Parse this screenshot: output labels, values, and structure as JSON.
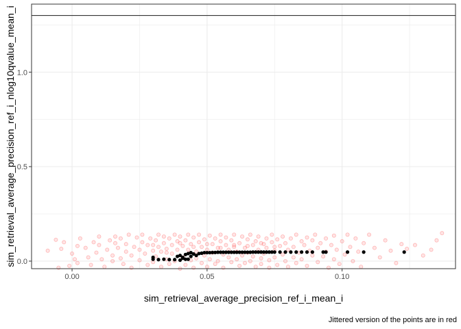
{
  "chart_data": {
    "type": "scatter",
    "xlabel": "sim_retrieval_average_precision_ref_i_mean_i",
    "ylabel": "sim_retrieval_average_precision_ref_i_nlog10qvalue_mean_i",
    "caption": "Jittered version of the points are in red",
    "xlim": [
      -0.015,
      0.142
    ],
    "ylim": [
      -0.04,
      1.36
    ],
    "x_ticks": [
      0.0,
      0.05,
      0.1
    ],
    "x_tick_labels": [
      "0.00",
      "0.05",
      "0.10"
    ],
    "y_ticks": [
      0.0,
      0.5,
      1.0
    ],
    "y_tick_labels": [
      "0.0",
      "0.5",
      "1.0"
    ],
    "hline": 1.3,
    "grid": true,
    "colors": {
      "points": "#000000",
      "jittered": "#ff0000",
      "grid": "#ebebeb",
      "hline": "#333333"
    },
    "series": [
      {
        "color": "#000000",
        "points": [
          [
            0.03,
            0.01
          ],
          [
            0.03,
            0.02
          ],
          [
            0.032,
            0.008
          ],
          [
            0.034,
            0.01
          ],
          [
            0.036,
            0.008
          ],
          [
            0.038,
            0.008
          ],
          [
            0.039,
            0.025
          ],
          [
            0.04,
            0.03
          ],
          [
            0.041,
            0.015
          ],
          [
            0.042,
            0.035
          ],
          [
            0.042,
            0.01
          ],
          [
            0.043,
            0.04
          ],
          [
            0.044,
            0.025
          ],
          [
            0.045,
            0.038
          ],
          [
            0.046,
            0.03
          ],
          [
            0.047,
            0.04
          ],
          [
            0.048,
            0.042
          ],
          [
            0.049,
            0.045
          ],
          [
            0.05,
            0.045
          ],
          [
            0.051,
            0.045
          ],
          [
            0.052,
            0.046
          ],
          [
            0.053,
            0.046
          ],
          [
            0.054,
            0.047
          ],
          [
            0.055,
            0.047
          ],
          [
            0.056,
            0.047
          ],
          [
            0.057,
            0.047
          ],
          [
            0.058,
            0.047
          ],
          [
            0.059,
            0.047
          ],
          [
            0.06,
            0.047
          ],
          [
            0.061,
            0.047
          ],
          [
            0.062,
            0.047
          ],
          [
            0.063,
            0.047
          ],
          [
            0.064,
            0.047
          ],
          [
            0.065,
            0.047
          ],
          [
            0.066,
            0.047
          ],
          [
            0.067,
            0.048
          ],
          [
            0.068,
            0.048
          ],
          [
            0.069,
            0.048
          ],
          [
            0.07,
            0.048
          ],
          [
            0.071,
            0.048
          ],
          [
            0.072,
            0.048
          ],
          [
            0.073,
            0.048
          ],
          [
            0.074,
            0.048
          ],
          [
            0.075,
            0.048
          ],
          [
            0.077,
            0.048
          ],
          [
            0.079,
            0.048
          ],
          [
            0.081,
            0.048
          ],
          [
            0.083,
            0.048
          ],
          [
            0.085,
            0.048
          ],
          [
            0.087,
            0.048
          ],
          [
            0.089,
            0.048
          ],
          [
            0.093,
            0.048
          ],
          [
            0.094,
            0.048
          ],
          [
            0.102,
            0.048
          ],
          [
            0.108,
            0.048
          ],
          [
            0.123,
            0.048
          ],
          [
            0.04,
            0.005
          ],
          [
            0.041,
            0.02
          ],
          [
            0.043,
            0.01
          ],
          [
            0.044,
            0.045
          ]
        ]
      },
      {
        "color": "#ff0000",
        "points": [
          [
            -0.009,
            0.055
          ],
          [
            -0.006,
            0.113
          ],
          [
            -0.005,
            -0.035
          ],
          [
            -0.004,
            0.065
          ],
          [
            -0.003,
            0.1
          ],
          [
            -0.001,
            -0.025
          ],
          [
            0.0,
            0.04
          ],
          [
            0.002,
            0.08
          ],
          [
            0.003,
            0.12
          ],
          [
            0.002,
            -0.01
          ],
          [
            0.001,
            0.01
          ],
          [
            0.005,
            0.07
          ],
          [
            0.006,
            0.02
          ],
          [
            0.007,
            -0.02
          ],
          [
            0.008,
            0.1
          ],
          [
            0.009,
            0.045
          ],
          [
            0.01,
            0.085
          ],
          [
            0.01,
            0.13
          ],
          [
            0.011,
            0.01
          ],
          [
            0.012,
            -0.03
          ],
          [
            0.013,
            0.06
          ],
          [
            0.014,
            0.11
          ],
          [
            0.015,
            0.03
          ],
          [
            0.015,
            0.0
          ],
          [
            0.016,
            0.095
          ],
          [
            0.016,
            0.13
          ],
          [
            0.017,
            0.07
          ],
          [
            0.018,
            0.015
          ],
          [
            0.018,
            0.12
          ],
          [
            0.019,
            -0.015
          ],
          [
            0.02,
            0.05
          ],
          [
            0.02,
            0.09
          ],
          [
            0.021,
            0.14
          ],
          [
            0.022,
            0.03
          ],
          [
            0.022,
            -0.035
          ],
          [
            0.023,
            0.075
          ],
          [
            0.024,
            0.125
          ],
          [
            0.025,
            0.005
          ],
          [
            0.025,
            0.06
          ],
          [
            0.026,
            0.1
          ],
          [
            0.026,
            0.14
          ],
          [
            0.027,
            0.04
          ],
          [
            0.028,
            -0.02
          ],
          [
            0.028,
            0.085
          ],
          [
            0.029,
            0.12
          ],
          [
            0.03,
            0.055
          ],
          [
            0.03,
            -0.005
          ],
          [
            0.031,
            0.11
          ],
          [
            0.031,
            0.025
          ],
          [
            0.032,
            0.14
          ],
          [
            0.032,
            0.075
          ],
          [
            0.033,
            -0.03
          ],
          [
            0.033,
            0.05
          ],
          [
            0.034,
            0.095
          ],
          [
            0.034,
            0.13
          ],
          [
            0.035,
            0.01
          ],
          [
            0.035,
            0.065
          ],
          [
            0.036,
            0.12
          ],
          [
            0.036,
            -0.015
          ],
          [
            0.037,
            0.085
          ],
          [
            0.037,
            0.04
          ],
          [
            0.038,
            0.14
          ],
          [
            0.038,
            0.0
          ],
          [
            0.039,
            0.105
          ],
          [
            0.039,
            0.06
          ],
          [
            0.04,
            -0.04
          ],
          [
            0.04,
            0.13
          ],
          [
            0.041,
            0.08
          ],
          [
            0.041,
            0.02
          ],
          [
            0.042,
            0.11
          ],
          [
            0.042,
            -0.02
          ],
          [
            0.043,
            0.06
          ],
          [
            0.043,
            0.14
          ],
          [
            0.044,
            0.005
          ],
          [
            0.044,
            0.09
          ],
          [
            0.045,
            -0.035
          ],
          [
            0.045,
            0.125
          ],
          [
            0.046,
            0.05
          ],
          [
            0.046,
            0.015
          ],
          [
            0.047,
            0.1
          ],
          [
            0.047,
            0.14
          ],
          [
            0.048,
            -0.01
          ],
          [
            0.048,
            0.075
          ],
          [
            0.049,
            0.03
          ],
          [
            0.049,
            0.115
          ],
          [
            0.05,
            0.06
          ],
          [
            0.05,
            -0.03
          ],
          [
            0.051,
            0.135
          ],
          [
            0.051,
            0.01
          ],
          [
            0.052,
            0.09
          ],
          [
            0.052,
            0.045
          ],
          [
            0.053,
            0.12
          ],
          [
            0.053,
            -0.015
          ],
          [
            0.054,
            0.07
          ],
          [
            0.054,
            0.0
          ],
          [
            0.055,
            0.105
          ],
          [
            0.055,
            0.14
          ],
          [
            0.056,
            0.035
          ],
          [
            0.056,
            -0.035
          ],
          [
            0.057,
            0.085
          ],
          [
            0.057,
            0.125
          ],
          [
            0.058,
            0.02
          ],
          [
            0.058,
            0.06
          ],
          [
            0.059,
            -0.005
          ],
          [
            0.059,
            0.11
          ],
          [
            0.06,
            0.075
          ],
          [
            0.06,
            0.14
          ],
          [
            0.061,
            0.01
          ],
          [
            0.061,
            0.05
          ],
          [
            0.062,
            -0.025
          ],
          [
            0.062,
            0.095
          ],
          [
            0.063,
            0.13
          ],
          [
            0.063,
            0.03
          ],
          [
            0.064,
            0.07
          ],
          [
            0.064,
            -0.01
          ],
          [
            0.065,
            0.115
          ],
          [
            0.065,
            0.045
          ],
          [
            0.066,
            0.0
          ],
          [
            0.066,
            0.14
          ],
          [
            0.067,
            0.085
          ],
          [
            0.067,
            0.025
          ],
          [
            0.068,
            -0.03
          ],
          [
            0.068,
            0.105
          ],
          [
            0.069,
            0.06
          ],
          [
            0.069,
            0.13
          ],
          [
            0.07,
            0.015
          ],
          [
            0.07,
            -0.015
          ],
          [
            0.071,
            0.09
          ],
          [
            0.071,
            0.04
          ],
          [
            0.072,
            0.12
          ],
          [
            0.072,
            0.07
          ],
          [
            0.073,
            0.005
          ],
          [
            0.073,
            -0.035
          ],
          [
            0.074,
            0.1
          ],
          [
            0.074,
            0.14
          ],
          [
            0.075,
            0.055
          ],
          [
            0.075,
            0.02
          ],
          [
            0.076,
            0.115
          ],
          [
            0.076,
            -0.02
          ],
          [
            0.077,
            0.08
          ],
          [
            0.078,
            0.13
          ],
          [
            0.078,
            0.035
          ],
          [
            0.079,
            0.0
          ],
          [
            0.079,
            0.095
          ],
          [
            0.08,
            0.06
          ],
          [
            0.08,
            -0.03
          ],
          [
            0.081,
            0.12
          ],
          [
            0.082,
            0.02
          ],
          [
            0.082,
            0.075
          ],
          [
            0.083,
            0.14
          ],
          [
            0.083,
            -0.01
          ],
          [
            0.084,
            0.045
          ],
          [
            0.085,
            0.105
          ],
          [
            0.085,
            0.01
          ],
          [
            0.086,
            0.085
          ],
          [
            0.087,
            0.125
          ],
          [
            0.087,
            -0.025
          ],
          [
            0.088,
            0.055
          ],
          [
            0.089,
            0.03
          ],
          [
            0.089,
            0.11
          ],
          [
            0.09,
            0.14
          ],
          [
            0.091,
            0.07
          ],
          [
            0.091,
            -0.005
          ],
          [
            0.092,
            0.095
          ],
          [
            0.093,
            0.025
          ],
          [
            0.094,
            0.12
          ],
          [
            0.094,
            0.05
          ],
          [
            0.095,
            -0.035
          ],
          [
            0.096,
            0.085
          ],
          [
            0.097,
            0.01
          ],
          [
            0.097,
            0.135
          ],
          [
            0.098,
            0.06
          ],
          [
            0.099,
            -0.015
          ],
          [
            0.1,
            0.105
          ],
          [
            0.101,
            0.035
          ],
          [
            0.102,
            0.14
          ],
          [
            0.103,
            0.075
          ],
          [
            0.104,
            0.0
          ],
          [
            0.105,
            0.12
          ],
          [
            0.106,
            0.05
          ],
          [
            0.107,
            -0.03
          ],
          [
            0.108,
            0.095
          ],
          [
            0.11,
            0.14
          ],
          [
            0.112,
            0.07
          ],
          [
            0.114,
            0.02
          ],
          [
            0.116,
            0.11
          ],
          [
            0.118,
            0.055
          ],
          [
            0.12,
            -0.01
          ],
          [
            0.122,
            0.09
          ],
          [
            0.124,
            0.065
          ],
          [
            0.127,
            0.085
          ],
          [
            0.13,
            0.03
          ],
          [
            0.135,
            0.11
          ],
          [
            0.137,
            0.148
          ],
          [
            0.133,
            0.06
          ],
          [
            0.045,
            0.075
          ],
          [
            0.05,
            0.09
          ],
          [
            0.055,
            0.07
          ],
          [
            0.06,
            0.085
          ],
          [
            0.065,
            0.08
          ],
          [
            0.07,
            0.095
          ],
          [
            0.075,
            0.075
          ],
          [
            0.04,
            0.095
          ],
          [
            0.035,
            0.045
          ],
          [
            0.03,
            0.085
          ]
        ]
      }
    ]
  }
}
